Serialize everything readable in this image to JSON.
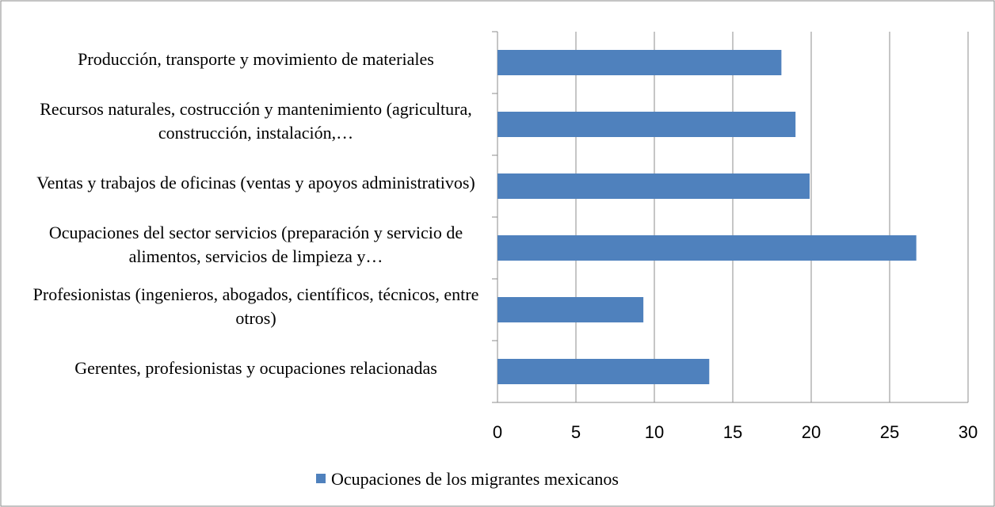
{
  "chart_data": {
    "type": "bar",
    "orientation": "horizontal",
    "categories": [
      "Producción, transporte y movimiento de materiales",
      "Recursos naturales, costrucción  y mantenimiento (agricultura, construcción, instalación,…",
      "Ventas y trabajos de oficinas (ventas y apoyos administrativos)",
      "Ocupaciones del sector servicios (preparación y servicio de alimentos, servicios de limpieza y…",
      "Profesionistas (ingenieros, abogados, científicos, técnicos, entre otros)",
      "Gerentes, profesionistas y ocupaciones relacionadas"
    ],
    "series": [
      {
        "name": "Ocupaciones de los migrantes mexicanos",
        "color": "#4f81bd",
        "values": [
          18.1,
          19,
          19.9,
          26.7,
          9.3,
          13.5
        ]
      }
    ],
    "xlim": [
      0,
      30
    ],
    "xticks": [
      0,
      5,
      10,
      15,
      20,
      25,
      30
    ],
    "grid": true,
    "legend": "bottom"
  }
}
